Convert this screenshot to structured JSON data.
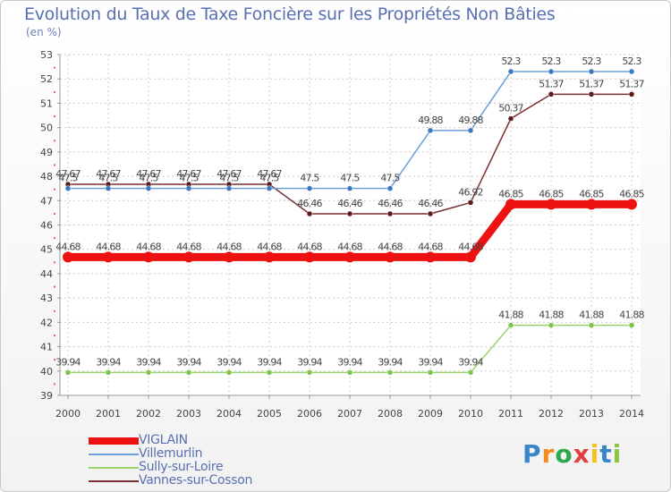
{
  "chart_data": {
    "type": "line",
    "title": "Evolution du Taux de Taxe Foncière sur les Propriétés Non Bâties",
    "ylabel": "(en %)",
    "xlabel": "",
    "x": [
      "2000",
      "2001",
      "2002",
      "2003",
      "2004",
      "2005",
      "2006",
      "2007",
      "2008",
      "2009",
      "2010",
      "2011",
      "2012",
      "2013",
      "2014"
    ],
    "ylim": [
      39,
      53
    ],
    "yticks": [
      "39",
      "40",
      "41",
      "42",
      "43",
      "44",
      "45",
      "46",
      "47",
      "48",
      "49",
      "50",
      "51",
      "52",
      "53"
    ],
    "grid": true,
    "series": [
      {
        "name": "VIGLAIN",
        "color": "#ee1111",
        "values": [
          44.68,
          44.68,
          44.68,
          44.68,
          44.68,
          44.68,
          44.68,
          44.68,
          44.68,
          44.68,
          44.68,
          46.85,
          46.85,
          46.85,
          46.85
        ],
        "labels": [
          "44.68",
          "44.68",
          "44.68",
          "44.68",
          "44.68",
          "44.68",
          "44.68",
          "44.68",
          "44.68",
          "44.68",
          "44.68",
          "46.85",
          "46.85",
          "46.85",
          "46.85"
        ]
      },
      {
        "name": "Villemurlin",
        "color": "#6a9fd8",
        "values": [
          47.5,
          47.5,
          47.5,
          47.5,
          47.5,
          47.5,
          47.5,
          47.5,
          47.5,
          49.88,
          49.88,
          52.3,
          52.3,
          52.3,
          52.3
        ],
        "labels": [
          "47.5",
          "47.5",
          "47.5",
          "47.5",
          "47.5",
          "47.5",
          "47.5",
          "47.5",
          "47.5",
          "49.88",
          "49.88",
          "52.3",
          "52.3",
          "52.3",
          "52.3"
        ]
      },
      {
        "name": "Sully-sur-Loire",
        "color": "#99d36a",
        "values": [
          39.94,
          39.94,
          39.94,
          39.94,
          39.94,
          39.94,
          39.94,
          39.94,
          39.94,
          39.94,
          39.94,
          41.88,
          41.88,
          41.88,
          41.88
        ],
        "labels": [
          "39.94",
          "39.94",
          "39.94",
          "39.94",
          "39.94",
          "39.94",
          "39.94",
          "39.94",
          "39.94",
          "39.94",
          "39.94",
          "41.88",
          "41.88",
          "41.88",
          "41.88"
        ]
      },
      {
        "name": "Vannes-sur-Cosson",
        "color": "#7a2f2f",
        "values": [
          47.67,
          47.67,
          47.67,
          47.67,
          47.67,
          47.67,
          46.46,
          46.46,
          46.46,
          46.46,
          46.92,
          50.37,
          51.37,
          51.37,
          51.37
        ],
        "labels": [
          "47.67",
          "47.67",
          "47.67",
          "47.67",
          "47.67",
          "47.67",
          "46.46",
          "46.46",
          "46.46",
          "46.46",
          "46.92",
          "50.37",
          "51.37",
          "51.37",
          "51.37"
        ]
      }
    ]
  },
  "logo": {
    "letters": [
      "P",
      "r",
      "o",
      "x",
      "i",
      "t",
      "i"
    ],
    "colors": [
      "#3a86c8",
      "#f28c1e",
      "#2fa84f",
      "#e04040",
      "#f2c21e",
      "#3a86c8",
      "#8cc63f"
    ]
  }
}
